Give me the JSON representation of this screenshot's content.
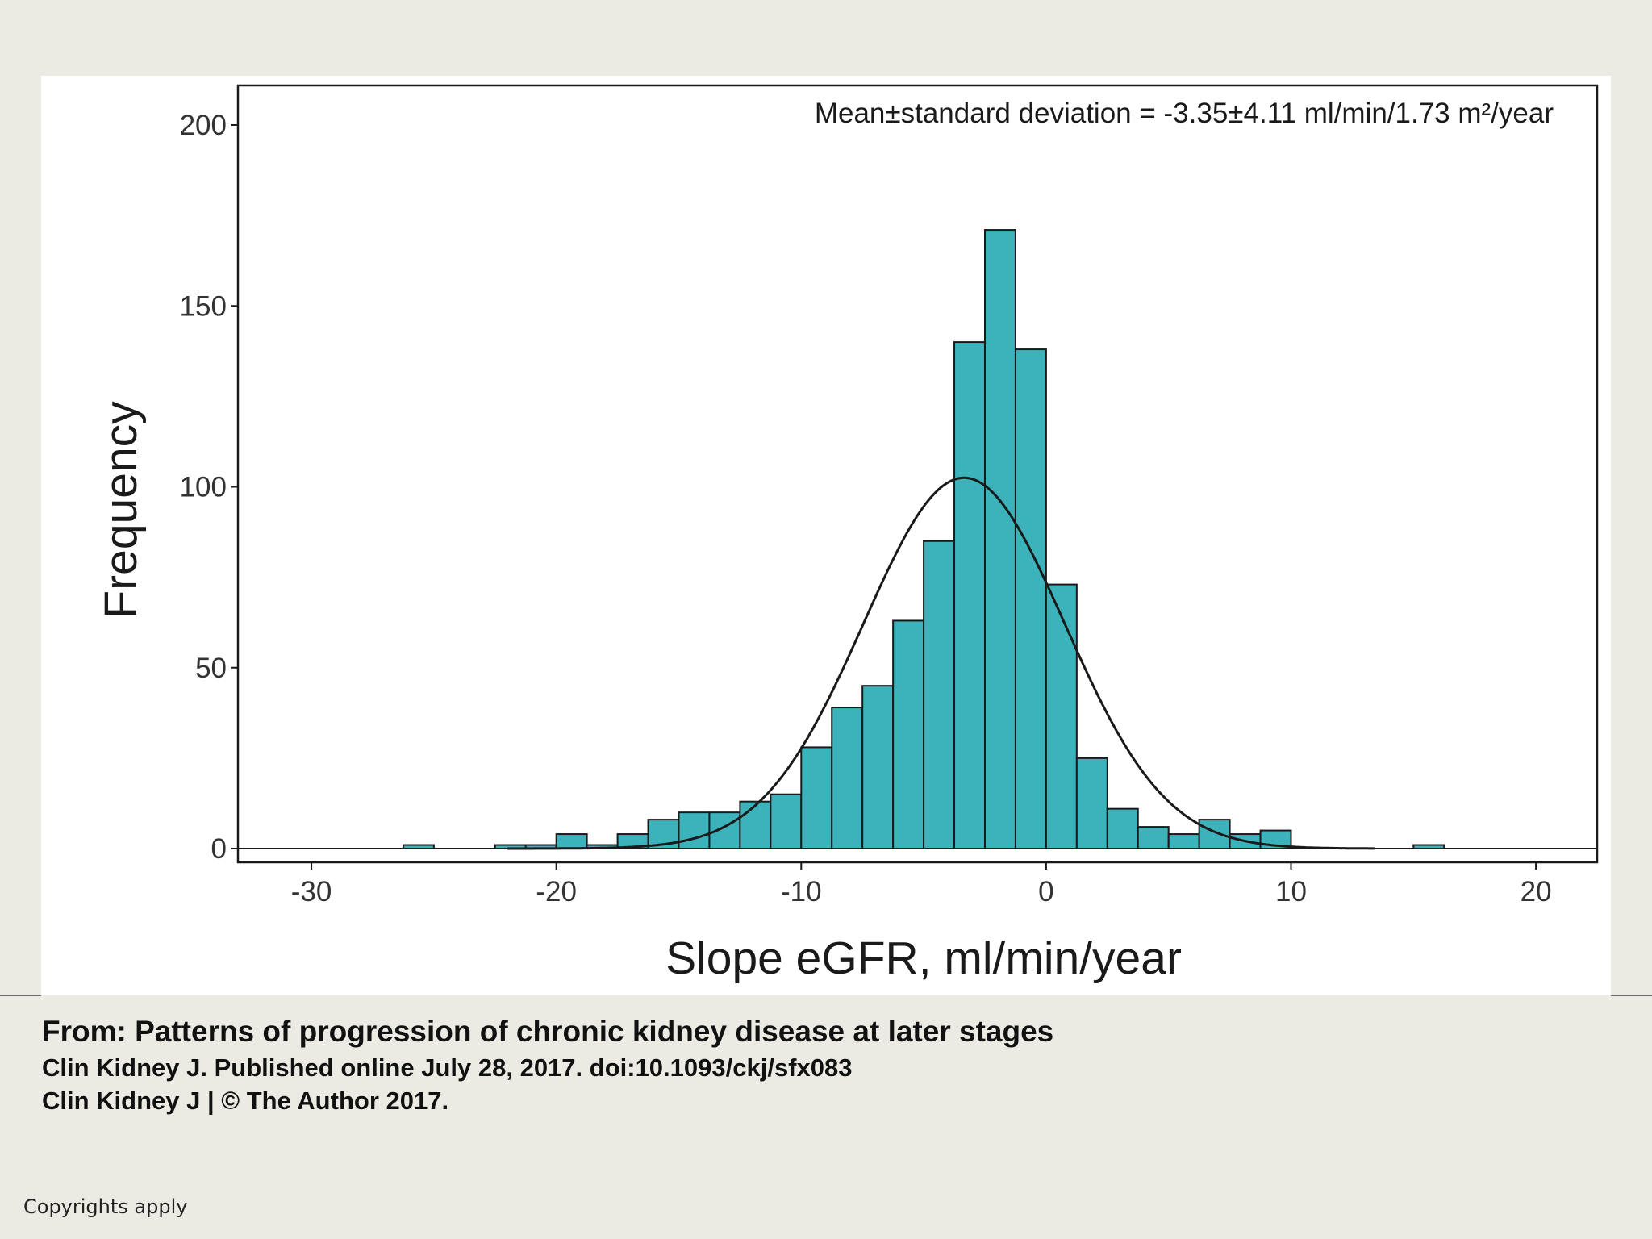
{
  "caption": {
    "title": "From: Patterns of progression of chronic kidney disease at later stages",
    "journal_line": "Clin Kidney J. Published online  July 28, 2017. doi:10.1093/ckj/sfx083",
    "rights_line": "Clin Kidney J | © The Author 2017."
  },
  "footer": {
    "copyright": "Copyrights apply"
  },
  "colors": {
    "bar_fill": "#3cb2bb",
    "bar_stroke": "#1a1a1a",
    "curve": "#1a1a1a",
    "panel": "#ffffff",
    "background": "#ecebe3"
  },
  "chart_data": {
    "type": "bar",
    "annotation": "Mean±standard deviation = -3.35±4.11 ml/min/1.73 m²/year",
    "xlabel": "Slope eGFR, ml/min/year",
    "ylabel": "Frequency",
    "xlim": [
      -33,
      22.5
    ],
    "ylim": [
      0,
      210
    ],
    "xticks": [
      -30,
      -20,
      -10,
      0,
      10,
      20
    ],
    "yticks": [
      0,
      50,
      100,
      150,
      200
    ],
    "bin_width": 1.25,
    "bins": [
      {
        "start": -26.25,
        "count": 1
      },
      {
        "start": -22.5,
        "count": 1
      },
      {
        "start": -21.25,
        "count": 1
      },
      {
        "start": -20.0,
        "count": 4
      },
      {
        "start": -18.75,
        "count": 1
      },
      {
        "start": -17.5,
        "count": 4
      },
      {
        "start": -16.25,
        "count": 8
      },
      {
        "start": -15.0,
        "count": 10
      },
      {
        "start": -13.75,
        "count": 10
      },
      {
        "start": -12.5,
        "count": 13
      },
      {
        "start": -11.25,
        "count": 15
      },
      {
        "start": -10.0,
        "count": 28
      },
      {
        "start": -8.75,
        "count": 39
      },
      {
        "start": -7.5,
        "count": 45
      },
      {
        "start": -6.25,
        "count": 63
      },
      {
        "start": -5.0,
        "count": 85
      },
      {
        "start": -3.75,
        "count": 140
      },
      {
        "start": -2.5,
        "count": 171
      },
      {
        "start": -1.25,
        "count": 138
      },
      {
        "start": 0.0,
        "count": 73
      },
      {
        "start": 1.25,
        "count": 25
      },
      {
        "start": 2.5,
        "count": 11
      },
      {
        "start": 3.75,
        "count": 6
      },
      {
        "start": 5.0,
        "count": 4
      },
      {
        "start": 6.25,
        "count": 8
      },
      {
        "start": 7.5,
        "count": 4
      },
      {
        "start": 8.75,
        "count": 5
      },
      {
        "start": 15.0,
        "count": 1
      }
    ],
    "normal_curve": {
      "mean": -3.35,
      "sd": 4.11,
      "peak": 102.5
    },
    "grid": false,
    "legend": "none"
  }
}
